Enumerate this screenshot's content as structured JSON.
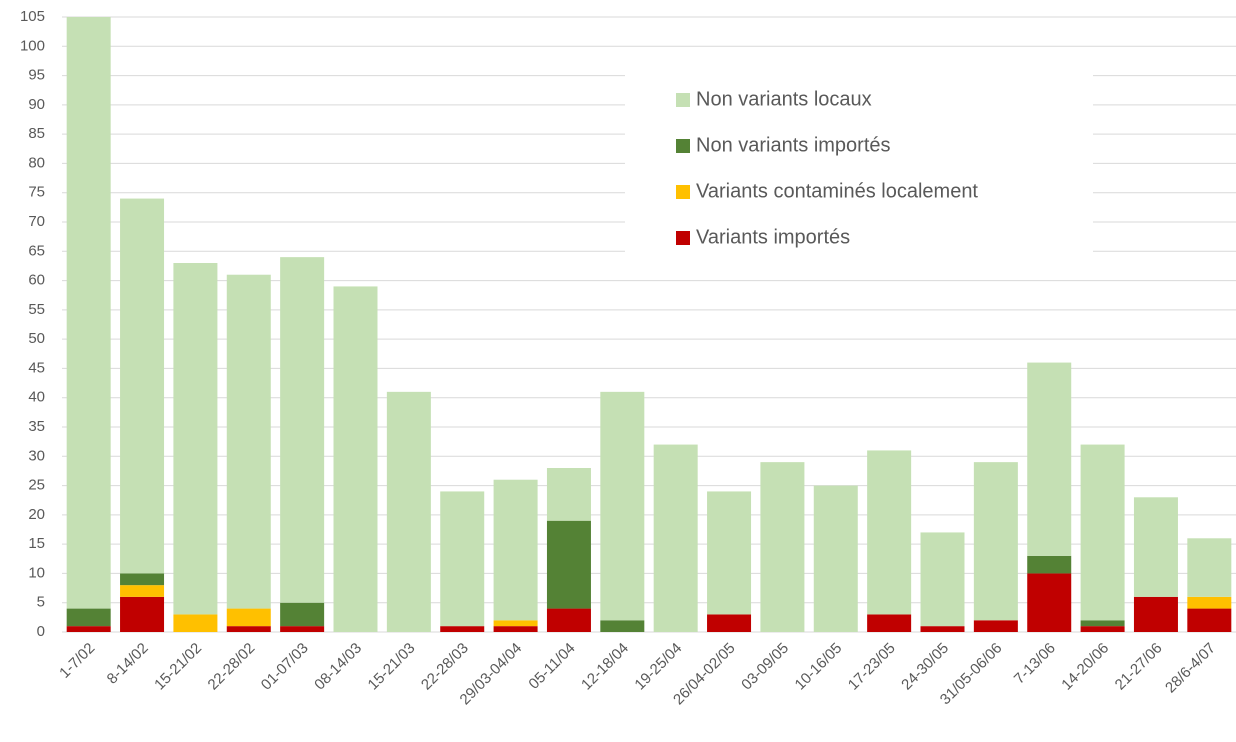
{
  "chart_data": {
    "type": "stacked_bar",
    "categories": [
      "1-7/02",
      "8-14/02",
      "15-21/02",
      "22-28/02",
      "01-07/03",
      "08-14/03",
      "15-21/03",
      "22-28/03",
      "29/03-04/04",
      "05-11/04",
      "12-18/04",
      "19-25/04",
      "26/04-02/05",
      "03-09/05",
      "10-16/05",
      "17-23/05",
      "24-30/05",
      "31/05-06/06",
      "7-13/06",
      "14-20/06",
      "21-27/06",
      "28/6-4/07"
    ],
    "series": [
      {
        "name": "Variants importés",
        "color": "#c00000",
        "values": [
          1,
          6,
          0,
          1,
          1,
          0,
          0,
          1,
          1,
          4,
          0,
          0,
          3,
          0,
          0,
          3,
          1,
          2,
          10,
          1,
          6,
          4
        ]
      },
      {
        "name": "Variants contaminés localement",
        "color": "#ffc000",
        "values": [
          0,
          2,
          3,
          3,
          0,
          0,
          0,
          0,
          1,
          0,
          0,
          0,
          0,
          0,
          0,
          0,
          0,
          0,
          0,
          0,
          0,
          2
        ]
      },
      {
        "name": "Non variants importés",
        "color": "#548235",
        "values": [
          3,
          2,
          0,
          0,
          4,
          0,
          0,
          0,
          0,
          15,
          2,
          0,
          0,
          0,
          0,
          0,
          0,
          0,
          3,
          1,
          0,
          0
        ]
      },
      {
        "name": "Non variants locaux",
        "color": "#c5e0b4",
        "values": [
          101,
          64,
          60,
          57,
          59,
          59,
          41,
          23,
          24,
          9,
          39,
          32,
          21,
          29,
          25,
          28,
          16,
          27,
          33,
          30,
          17,
          10
        ]
      }
    ],
    "ylim": [
      0,
      105
    ],
    "yticks": [
      0,
      5,
      10,
      15,
      20,
      25,
      30,
      35,
      40,
      45,
      50,
      55,
      60,
      65,
      70,
      75,
      80,
      85,
      90,
      95,
      100,
      105
    ],
    "grid": true,
    "legend": "top-right"
  }
}
